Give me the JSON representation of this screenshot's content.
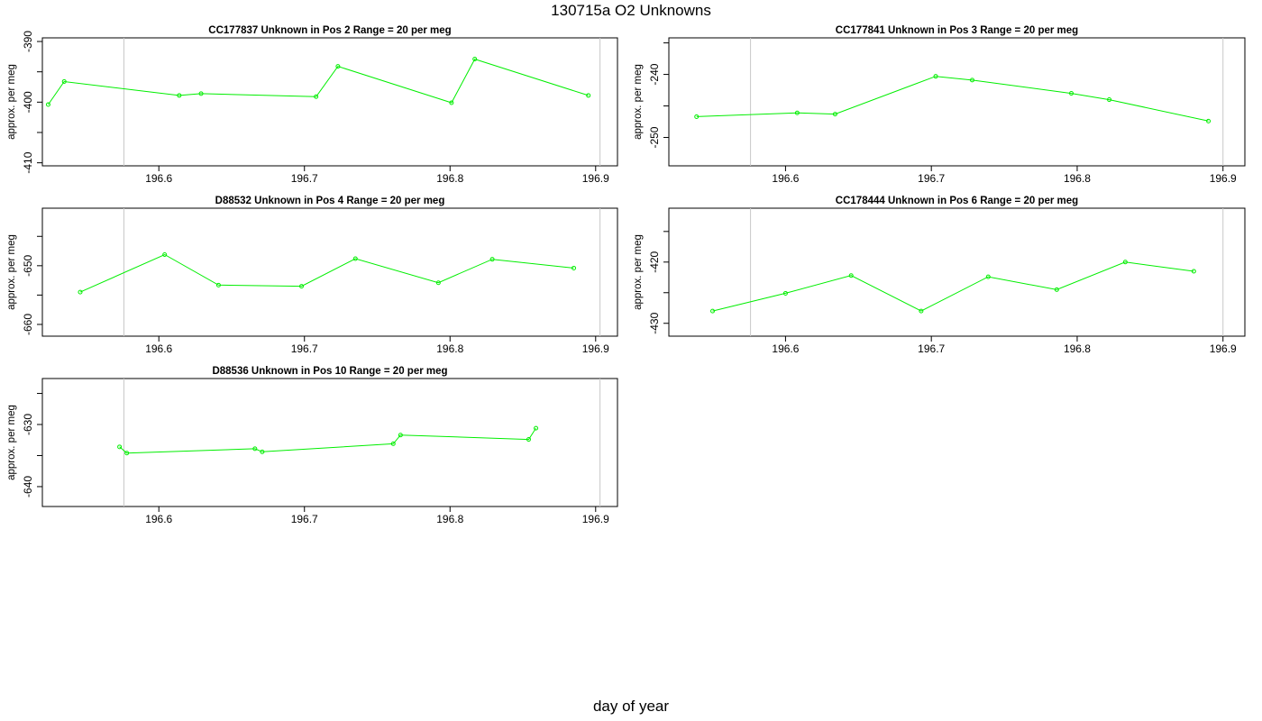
{
  "title": "130715a  O2 Unknowns",
  "xlabel": "day of year",
  "colors": {
    "series": "#00ee00",
    "frame": "#000000",
    "refline": "#c8c8c8",
    "text": "#000000"
  },
  "chart_data": [
    {
      "type": "line",
      "title": "CC177837    Unknown in Pos 2         Range = 20 per meg",
      "ylabel": "approx. per meg",
      "xlim": [
        196.52,
        196.915
      ],
      "ylim": [
        -410.5,
        -389.4
      ],
      "xticks": [
        196.6,
        196.7,
        196.8,
        196.9
      ],
      "yticks": [
        -390,
        -400,
        -410
      ],
      "vlines": [
        196.576,
        196.903
      ],
      "x": [
        196.524,
        196.535,
        196.614,
        196.629,
        196.708,
        196.723,
        196.801,
        196.817,
        196.895
      ],
      "y": [
        -400.4,
        -396.6,
        -398.9,
        -398.6,
        -399.1,
        -394.1,
        -400.1,
        -392.9,
        -398.9
      ]
    },
    {
      "type": "line",
      "title": "CC177841    Unknown in Pos 3         Range = 20 per meg",
      "ylabel": "approx. per meg",
      "xlim": [
        196.52,
        196.915
      ],
      "ylim": [
        -254.5,
        -234.2
      ],
      "xticks": [
        196.6,
        196.7,
        196.8,
        196.9
      ],
      "yticks": [
        -240,
        -250
      ],
      "vlines": [
        196.576,
        196.9
      ],
      "x": [
        196.539,
        196.608,
        196.634,
        196.703,
        196.728,
        196.796,
        196.822,
        196.89
      ],
      "y": [
        -246.7,
        -246.1,
        -246.3,
        -240.3,
        -240.9,
        -243.0,
        -244.0,
        -247.4
      ]
    },
    {
      "type": "line",
      "title": "D88532    Unknown in Pos 4         Range = 20 per meg",
      "ylabel": "approx. per meg",
      "xlim": [
        196.52,
        196.915
      ],
      "ylim": [
        -662,
        -640.2
      ],
      "xticks": [
        196.6,
        196.7,
        196.8,
        196.9
      ],
      "yticks": [
        -650,
        -660
      ],
      "vlines": [
        196.576,
        196.903
      ],
      "x": [
        196.546,
        196.604,
        196.641,
        196.698,
        196.735,
        196.792,
        196.829,
        196.885
      ],
      "y": [
        -654.5,
        -648.1,
        -653.3,
        -653.5,
        -648.8,
        -652.9,
        -648.9,
        -650.4
      ]
    },
    {
      "type": "line",
      "title": "CC178444    Unknown in Pos 6         Range = 20 per meg",
      "ylabel": "approx. per meg",
      "xlim": [
        196.52,
        196.915
      ],
      "ylim": [
        -432.1,
        -411.2
      ],
      "xticks": [
        196.6,
        196.7,
        196.8,
        196.9
      ],
      "yticks": [
        -420,
        -430
      ],
      "vlines": [
        196.576,
        196.9
      ],
      "x": [
        196.55,
        196.6,
        196.645,
        196.693,
        196.739,
        196.786,
        196.833,
        196.88
      ],
      "y": [
        -428.0,
        -425.1,
        -422.2,
        -428.0,
        -422.4,
        -424.5,
        -420.0,
        -421.5
      ]
    },
    {
      "type": "line",
      "title": "D88536    Unknown in Pos 10         Range = 20 per meg",
      "ylabel": "approx. per meg",
      "xlim": [
        196.52,
        196.915
      ],
      "ylim": [
        -643.2,
        -622.6
      ],
      "xticks": [
        196.6,
        196.7,
        196.8,
        196.9
      ],
      "yticks": [
        -630,
        -640
      ],
      "vlines": [
        196.576,
        196.903
      ],
      "x": [
        196.573,
        196.578,
        196.666,
        196.671,
        196.761,
        196.766,
        196.854,
        196.859
      ],
      "y": [
        -633.6,
        -634.6,
        -633.9,
        -634.4,
        -633.1,
        -631.7,
        -632.4,
        -630.6
      ]
    }
  ]
}
